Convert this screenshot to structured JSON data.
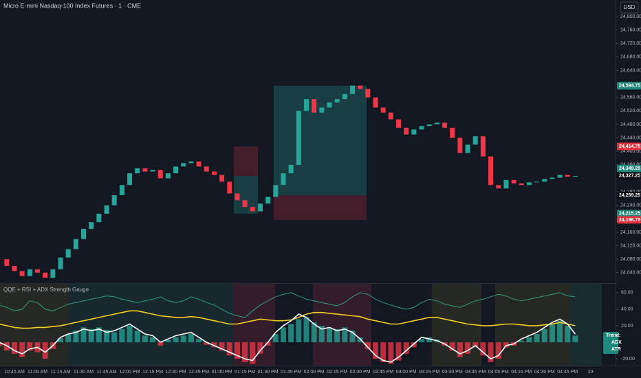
{
  "header": {
    "title": "Micro E-mini Nasdaq-100 Index Futures · 1 · CME",
    "currency": "USD"
  },
  "chart_data": [
    {
      "type": "candlestick",
      "values": [
        24080,
        24060,
        24045,
        24030,
        24050,
        24040,
        24025,
        24050,
        24085,
        24110,
        24140,
        24170,
        24190,
        24215,
        24240,
        24270,
        24300,
        24335,
        24350,
        24340,
        24345,
        24320,
        24335,
        24355,
        24365,
        24370,
        24355,
        24340,
        24330,
        24310,
        24275,
        24255,
        24235,
        24222,
        24245,
        24265,
        24300,
        24335,
        24360,
        24520,
        24555,
        24515,
        24530,
        24545,
        24555,
        24570,
        24595,
        24585,
        24560,
        24530,
        24515,
        24495,
        24470,
        24450,
        24465,
        24475,
        24480,
        24485,
        24470,
        24440,
        24395,
        24420,
        24445,
        24385,
        24300,
        24290,
        24315,
        24305,
        24300,
        24308,
        24310,
        24318,
        24322,
        24330,
        24325,
        24327
      ],
      "up_color": "#26a69a",
      "down_color": "#f23645",
      "ylim": [
        24009,
        24849
      ],
      "yticks": [
        {
          "value": 24800,
          "label": "24,800.00"
        },
        {
          "value": 24760,
          "label": "24,760.00"
        },
        {
          "value": 24720,
          "label": "24,720.00"
        },
        {
          "value": 24680,
          "label": "24,680.00"
        },
        {
          "value": 24640,
          "label": "24,640.00"
        },
        {
          "value": 24600,
          "label": "24,600.00"
        },
        {
          "value": 24560,
          "label": "24,560.00"
        },
        {
          "value": 24520,
          "label": "24,520.00"
        },
        {
          "value": 24480,
          "label": "24,480.00"
        },
        {
          "value": 24440,
          "label": "24,440.00"
        },
        {
          "value": 24400,
          "label": "24,400.00"
        },
        {
          "value": 24360,
          "label": "24,360.00"
        },
        {
          "value": 24280,
          "label": "24,280.00"
        },
        {
          "value": 24240,
          "label": "24,240.00"
        },
        {
          "value": 24160,
          "label": "24,160.00"
        },
        {
          "value": 24120,
          "label": "24,120.00"
        },
        {
          "value": 24080,
          "label": "24,080.00"
        },
        {
          "value": 24040,
          "label": "24,040.00"
        }
      ],
      "price_labels": [
        {
          "value": 24594.75,
          "label": "24,594.75",
          "color": "#1e8a7e"
        },
        {
          "value": 24414.75,
          "label": "24,414.75",
          "color": "#e0323f"
        },
        {
          "value": 24349.25,
          "label": "24,349.25",
          "color": "#1e8a7e"
        },
        {
          "value": 24327.25,
          "label": "24,327.25",
          "color": "#0b0d12"
        },
        {
          "value": 24269.25,
          "label": "24,269.25",
          "color": "#0b0d12"
        },
        {
          "value": 24215.25,
          "label": "24,215.25",
          "color": "#1e8a7e"
        },
        {
          "value": 24196.75,
          "label": "24,196.75",
          "color": "#e0323f"
        }
      ],
      "positions": [
        {
          "entry": 24327.25,
          "target": 24215.25,
          "stop": 24414.75
        },
        {
          "entry": 24269.25,
          "target": 24594.75,
          "stop": 24196.75
        }
      ],
      "time_labels": [
        "10:45 AM",
        "11:00 AM",
        "11:15 AM",
        "11:30 AM",
        "11:45 AM",
        "12:00 PM",
        "12:15 PM",
        "12:30 PM",
        "12:45 PM",
        "01:00 PM",
        "01:15 PM",
        "01:30 PM",
        "01:45 PM",
        "02:00 PM",
        "02:15 PM",
        "02:30 PM",
        "02:45 PM",
        "03:00 PM",
        "03:15 PM",
        "03:30 PM",
        "03:45 PM",
        "04:00 PM",
        "04:15 PM",
        "04:30 PM",
        "04:45 PM",
        "23"
      ]
    },
    {
      "type": "indicator",
      "title": "QQE + RSI + ADX Strength Gauge",
      "histogram": {
        "up_color": "#26a69a",
        "down_color": "#f23645",
        "values": [
          -5,
          -10,
          -14,
          -18,
          -10,
          -12,
          -20,
          -8,
          5,
          10,
          14,
          18,
          16,
          18,
          15,
          12,
          16,
          20,
          14,
          8,
          6,
          -4,
          3,
          6,
          8,
          10,
          4,
          -3,
          -6,
          -10,
          -16,
          -20,
          -24,
          -26,
          -14,
          -4,
          10,
          18,
          22,
          28,
          30,
          24,
          20,
          18,
          16,
          18,
          14,
          6,
          -8,
          -20,
          -24,
          -26,
          -22,
          -14,
          -6,
          4,
          6,
          3,
          -4,
          -10,
          -18,
          -14,
          -6,
          -16,
          -24,
          -20,
          -6,
          -4,
          2,
          6,
          10,
          16,
          22,
          26,
          20,
          8
        ]
      },
      "series": [
        {
          "color": "#2f9e7c",
          "values": [
            45,
            42,
            38,
            40,
            50,
            48,
            40,
            38,
            42,
            46,
            48,
            50,
            52,
            54,
            56,
            55,
            52,
            50,
            48,
            50,
            52,
            55,
            50,
            48,
            50,
            55,
            52,
            48,
            45,
            40,
            35,
            32,
            30,
            38,
            45,
            50,
            55,
            58,
            60,
            56,
            52,
            50,
            48,
            46,
            44,
            48,
            55,
            60,
            58,
            52,
            48,
            45,
            42,
            40,
            42,
            48,
            52,
            50,
            46,
            44,
            42,
            46,
            50,
            52,
            55,
            58,
            56,
            52,
            50,
            52,
            54,
            56,
            58,
            60,
            56,
            55
          ]
        },
        {
          "color": "#f5d020",
          "values": [
            22,
            20,
            18,
            17,
            17,
            18,
            18,
            19,
            20,
            22,
            24,
            26,
            28,
            30,
            32,
            34,
            36,
            38,
            38,
            36,
            34,
            32,
            31,
            30,
            30,
            31,
            30,
            28,
            26,
            24,
            22,
            22,
            24,
            26,
            28,
            27,
            26,
            26,
            27,
            30,
            34,
            36,
            36,
            35,
            34,
            33,
            32,
            31,
            28,
            26,
            24,
            22,
            22,
            24,
            26,
            28,
            30,
            30,
            28,
            26,
            24,
            22,
            21,
            20,
            20,
            21,
            22,
            22,
            21,
            20,
            20,
            21,
            22,
            24,
            22,
            20
          ]
        },
        {
          "color": "#ffffff",
          "values": [
            0,
            -4,
            -10,
            -14,
            -8,
            -6,
            -12,
            -4,
            6,
            10,
            12,
            16,
            14,
            16,
            12,
            14,
            18,
            22,
            16,
            10,
            8,
            0,
            4,
            8,
            10,
            12,
            6,
            0,
            -4,
            -8,
            -12,
            -16,
            -20,
            -22,
            -10,
            0,
            12,
            20,
            26,
            34,
            30,
            22,
            16,
            18,
            14,
            16,
            12,
            4,
            -6,
            -16,
            -22,
            -24,
            -18,
            -10,
            -2,
            6,
            4,
            2,
            -2,
            -8,
            -14,
            -10,
            -4,
            -12,
            -20,
            -16,
            -4,
            -2,
            4,
            8,
            12,
            18,
            24,
            28,
            22,
            10
          ]
        }
      ],
      "ylim": [
        -28.2,
        70.6
      ],
      "yticks": [
        {
          "value": 60,
          "label": "60.00"
        },
        {
          "value": 40,
          "label": "40.00"
        },
        {
          "value": 20,
          "label": "20.00"
        },
        {
          "value": -20,
          "label": "-20.00"
        }
      ],
      "table": [
        "Trend:",
        "ADX",
        "ATR"
      ]
    }
  ]
}
